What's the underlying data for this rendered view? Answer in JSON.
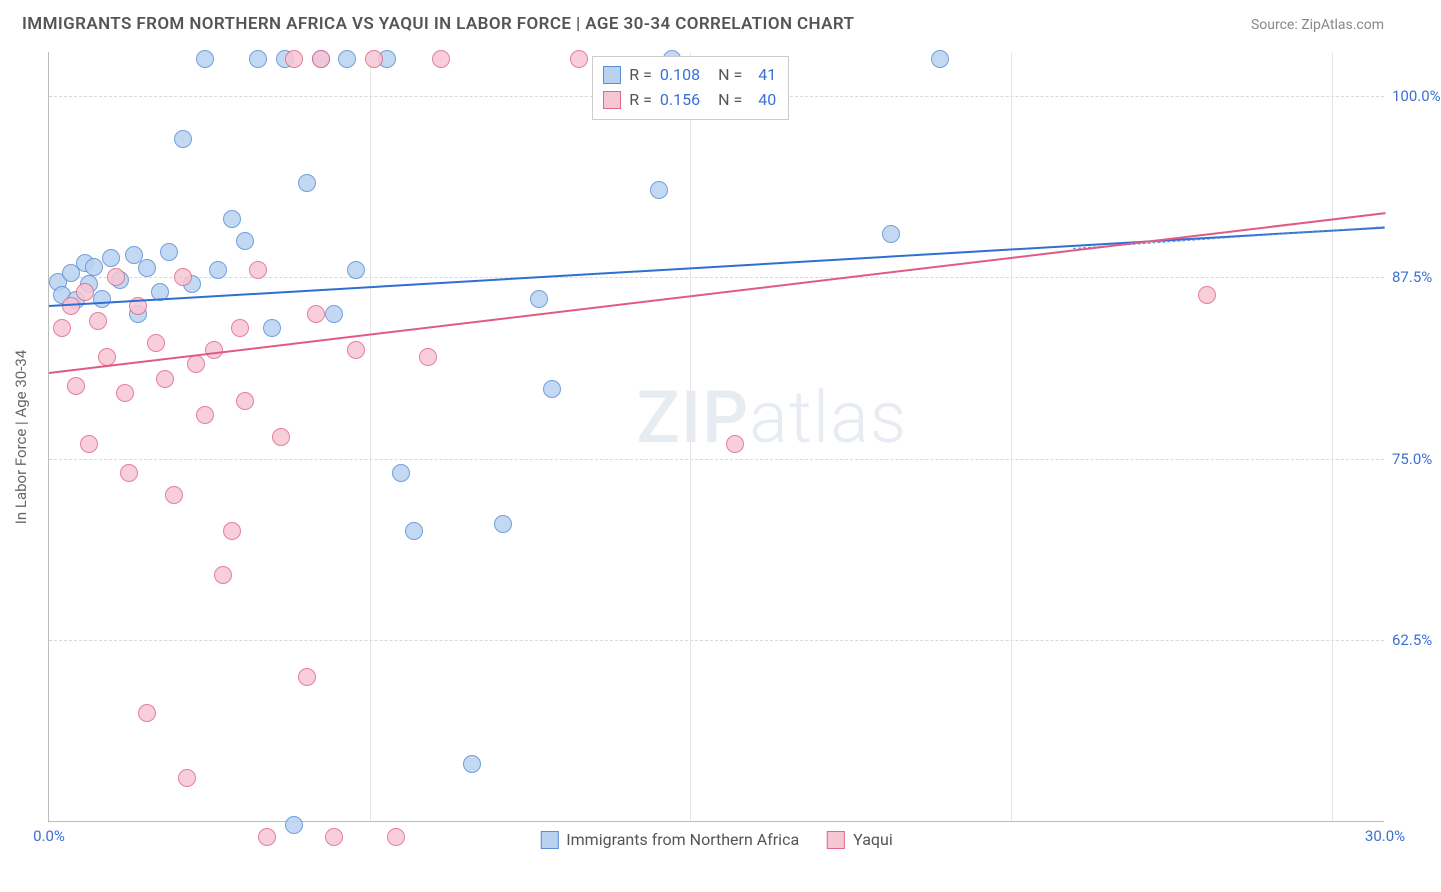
{
  "title": "IMMIGRANTS FROM NORTHERN AFRICA VS YAQUI IN LABOR FORCE | AGE 30-34 CORRELATION CHART",
  "source": "Source: ZipAtlas.com",
  "ylabel": "In Labor Force | Age 30-34",
  "watermark_zip": "ZIP",
  "watermark_atlas": "atlas",
  "chart": {
    "type": "scatter",
    "background_color": "#ffffff",
    "grid_color": "#d8d8d8",
    "axis_color": "#bbbbbb",
    "tick_label_color": "#3b6fd6",
    "xlim": [
      0,
      30
    ],
    "ylim": [
      50,
      103
    ],
    "xticks": [
      {
        "v": 0,
        "label": "0.0%"
      },
      {
        "v": 30,
        "label": "30.0%"
      }
    ],
    "xgrid": [
      7.2,
      14.4,
      21.6,
      28.8
    ],
    "yticks": [
      {
        "v": 62.5,
        "label": "62.5%"
      },
      {
        "v": 75.0,
        "label": "75.0%"
      },
      {
        "v": 87.5,
        "label": "87.5%"
      },
      {
        "v": 100.0,
        "label": "100.0%"
      }
    ],
    "marker_radius": 9,
    "marker_opacity": 0.85
  },
  "series": [
    {
      "name": "Immigrants from Northern Africa",
      "fill": "#b9d2f0",
      "stroke": "#5a8fd6",
      "trend_color": "#2f6fd0",
      "R": "0.108",
      "N": "41",
      "trend": {
        "x1": 0,
        "y1": 85.6,
        "x2": 30,
        "y2": 91.0
      },
      "trend_dash": {
        "x1": 23.0,
        "y1": 89.5,
        "x2": 30,
        "y2": 91.0
      },
      "points": [
        [
          0.2,
          87.2
        ],
        [
          0.3,
          86.3
        ],
        [
          0.5,
          87.8
        ],
        [
          0.6,
          85.9
        ],
        [
          0.8,
          88.5
        ],
        [
          0.9,
          87.0
        ],
        [
          1.0,
          88.2
        ],
        [
          1.2,
          86.0
        ],
        [
          1.4,
          88.8
        ],
        [
          1.6,
          87.3
        ],
        [
          1.9,
          89.0
        ],
        [
          2.0,
          85.0
        ],
        [
          2.2,
          88.1
        ],
        [
          2.5,
          86.5
        ],
        [
          2.7,
          89.2
        ],
        [
          3.0,
          97.0
        ],
        [
          3.2,
          87.0
        ],
        [
          3.5,
          102.5
        ],
        [
          3.8,
          88.0
        ],
        [
          4.1,
          91.5
        ],
        [
          4.4,
          90.0
        ],
        [
          4.7,
          102.5
        ],
        [
          5.0,
          84.0
        ],
        [
          5.3,
          102.5
        ],
        [
          5.5,
          49.8
        ],
        [
          5.8,
          94.0
        ],
        [
          6.1,
          102.5
        ],
        [
          6.4,
          85.0
        ],
        [
          6.7,
          102.5
        ],
        [
          6.9,
          88.0
        ],
        [
          7.6,
          102.5
        ],
        [
          7.9,
          74.0
        ],
        [
          8.2,
          70.0
        ],
        [
          9.5,
          54.0
        ],
        [
          10.2,
          70.5
        ],
        [
          11.0,
          86.0
        ],
        [
          11.3,
          79.8
        ],
        [
          13.7,
          93.5
        ],
        [
          14.0,
          102.5
        ],
        [
          18.9,
          90.5
        ],
        [
          20.0,
          102.5
        ]
      ]
    },
    {
      "name": "Yaqui",
      "fill": "#f6c6d4",
      "stroke": "#e06a8e",
      "trend_color": "#e05a85",
      "R": "0.156",
      "N": "40",
      "trend": {
        "x1": 0,
        "y1": 81.0,
        "x2": 30,
        "y2": 92.0
      },
      "points": [
        [
          0.3,
          84.0
        ],
        [
          0.5,
          85.5
        ],
        [
          0.6,
          80.0
        ],
        [
          0.8,
          86.5
        ],
        [
          0.9,
          76.0
        ],
        [
          1.1,
          84.5
        ],
        [
          1.3,
          82.0
        ],
        [
          1.5,
          87.5
        ],
        [
          1.7,
          79.5
        ],
        [
          1.8,
          74.0
        ],
        [
          2.0,
          85.5
        ],
        [
          2.2,
          57.5
        ],
        [
          2.4,
          83.0
        ],
        [
          2.6,
          80.5
        ],
        [
          2.8,
          72.5
        ],
        [
          3.0,
          87.5
        ],
        [
          3.1,
          53.0
        ],
        [
          3.3,
          81.5
        ],
        [
          3.5,
          78.0
        ],
        [
          3.7,
          82.5
        ],
        [
          3.9,
          67.0
        ],
        [
          4.1,
          70.0
        ],
        [
          4.3,
          84.0
        ],
        [
          4.4,
          79.0
        ],
        [
          4.7,
          88.0
        ],
        [
          4.9,
          49.0
        ],
        [
          5.2,
          76.5
        ],
        [
          5.5,
          102.5
        ],
        [
          5.8,
          60.0
        ],
        [
          6.0,
          85.0
        ],
        [
          6.1,
          102.5
        ],
        [
          6.4,
          49.0
        ],
        [
          6.9,
          82.5
        ],
        [
          7.3,
          102.5
        ],
        [
          7.8,
          49.0
        ],
        [
          8.5,
          82.0
        ],
        [
          8.8,
          102.5
        ],
        [
          11.9,
          102.5
        ],
        [
          15.4,
          76.0
        ],
        [
          26.0,
          86.3
        ]
      ]
    }
  ],
  "legend": {
    "R_label": "R =",
    "N_label": "N =",
    "swatch_size": 18
  }
}
